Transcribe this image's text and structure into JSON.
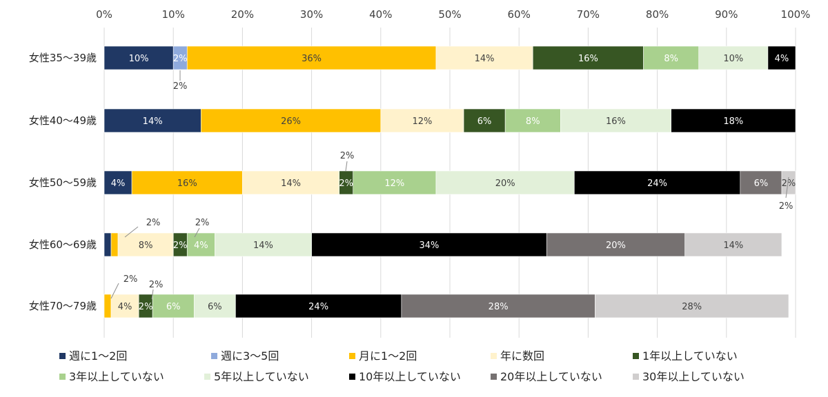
{
  "chart_data": {
    "type": "bar",
    "orientation": "horizontal",
    "stacked": "percent",
    "categories": [
      "女性35～39歳",
      "女性40～49歳",
      "女性50～59歳",
      "女性60～69歳",
      "女性70～79歳"
    ],
    "xlim": [
      0,
      100
    ],
    "x_ticks": [
      "0%",
      "10%",
      "20%",
      "30%",
      "40%",
      "50%",
      "60%",
      "70%",
      "80%",
      "90%",
      "100%"
    ],
    "grid": "vertical",
    "legend_position": "bottom",
    "series": [
      {
        "name": "週に1～2回",
        "color": "#203864",
        "values": [
          10,
          14,
          4,
          1,
          0
        ],
        "labels": [
          "10%",
          "14%",
          "4%",
          "",
          ""
        ]
      },
      {
        "name": "週に3～5回",
        "color": "#8faadc",
        "values": [
          2,
          0,
          0,
          0,
          0
        ],
        "labels": [
          "2%",
          "",
          "",
          "",
          ""
        ]
      },
      {
        "name": "月に1～2回",
        "color": "#ffc000",
        "values": [
          36,
          26,
          16,
          1,
          1
        ],
        "labels": [
          "36%",
          "26%",
          "16%",
          "",
          ""
        ]
      },
      {
        "name": "年に数回",
        "color": "#fff2cc",
        "values": [
          14,
          12,
          14,
          8,
          4
        ],
        "labels": [
          "14%",
          "12%",
          "14%",
          "8%",
          "4%"
        ]
      },
      {
        "name": "1年以上していない",
        "color": "#375623",
        "values": [
          16,
          6,
          2,
          2,
          2
        ],
        "labels": [
          "16%",
          "6%",
          "2%",
          "2%",
          "2%"
        ]
      },
      {
        "name": "3年以上していない",
        "color": "#a9d18e",
        "values": [
          8,
          8,
          12,
          4,
          6
        ],
        "labels": [
          "8%",
          "8%",
          "12%",
          "4%",
          "6%"
        ]
      },
      {
        "name": "5年以上していない",
        "color": "#e2f0d9",
        "values": [
          10,
          16,
          20,
          14,
          6
        ],
        "labels": [
          "10%",
          "16%",
          "20%",
          "14%",
          "6%"
        ]
      },
      {
        "name": "10年以上していない",
        "color": "#000000",
        "values": [
          4,
          18,
          24,
          34,
          24
        ],
        "labels": [
          "4%",
          "18%",
          "24%",
          "34%",
          "24%"
        ]
      },
      {
        "name": "20年以上していない",
        "color": "#767171",
        "values": [
          0,
          0,
          6,
          20,
          28
        ],
        "labels": [
          "",
          "",
          "6%",
          "20%",
          "28%"
        ]
      },
      {
        "name": "30年以上していない",
        "color": "#d0cece",
        "values": [
          0,
          0,
          2,
          14,
          28
        ],
        "labels": [
          "",
          "",
          "2%",
          "14%",
          "28%"
        ]
      }
    ],
    "callouts": [
      {
        "row": 0,
        "text": "2%"
      },
      {
        "row": 2,
        "text": "2%"
      },
      {
        "row": 2,
        "text": "2%"
      },
      {
        "row": 3,
        "text": "2%"
      },
      {
        "row": 3,
        "text": "2%"
      },
      {
        "row": 4,
        "text": "2%"
      },
      {
        "row": 4,
        "text": "2%"
      }
    ]
  }
}
